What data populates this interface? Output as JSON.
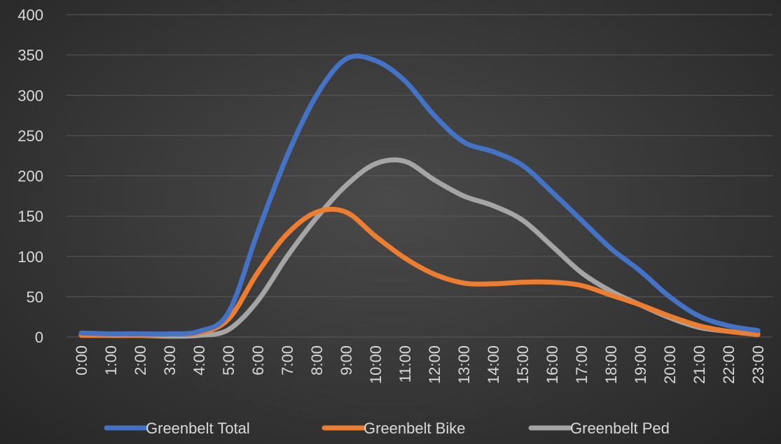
{
  "chart_data": {
    "type": "line",
    "title": "",
    "xlabel": "",
    "ylabel": "",
    "categories": [
      "0:00",
      "1:00",
      "2:00",
      "3:00",
      "4:00",
      "5:00",
      "6:00",
      "7:00",
      "8:00",
      "9:00",
      "10:00",
      "11:00",
      "12:00",
      "13:00",
      "14:00",
      "15:00",
      "16:00",
      "17:00",
      "18:00",
      "19:00",
      "20:00",
      "21:00",
      "22:00",
      "23:00"
    ],
    "ylim": [
      0,
      400
    ],
    "yticks": [
      0,
      50,
      100,
      150,
      200,
      250,
      300,
      350,
      400
    ],
    "grid": true,
    "smooth": true,
    "legend_position": "bottom",
    "series": [
      {
        "name": "Greenbelt Total",
        "color": "#4472c4",
        "values": [
          5,
          4,
          4,
          4,
          7,
          30,
          130,
          225,
          300,
          345,
          343,
          318,
          275,
          242,
          230,
          213,
          180,
          145,
          110,
          82,
          50,
          26,
          14,
          8
        ]
      },
      {
        "name": "Greenbelt Bike",
        "color": "#ed7d31",
        "values": [
          2,
          2,
          2,
          3,
          5,
          22,
          80,
          128,
          155,
          155,
          125,
          98,
          78,
          67,
          66,
          68,
          68,
          64,
          52,
          40,
          26,
          14,
          7,
          3
        ]
      },
      {
        "name": "Greenbelt Ped",
        "color": "#a5a5a5",
        "values": [
          3,
          2,
          2,
          1,
          2,
          9,
          45,
          100,
          148,
          188,
          215,
          218,
          195,
          175,
          163,
          145,
          113,
          80,
          57,
          40,
          24,
          12,
          7,
          4
        ]
      }
    ]
  }
}
